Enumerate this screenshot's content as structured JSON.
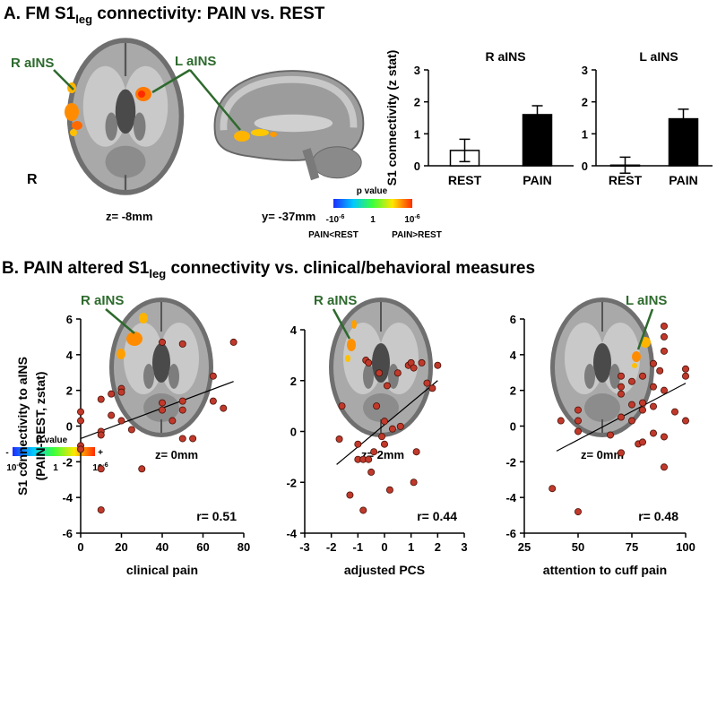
{
  "panel_a": {
    "title": [
      "A. FM S1",
      "leg",
      " connectivity: PAIN vs. REST"
    ],
    "labels": [
      "R aINS",
      "L aINS"
    ],
    "orientation": "R",
    "slices": [
      "z= -8mm",
      "y= -37mm"
    ],
    "colorbar": {
      "title": "p value",
      "low": "-10",
      "low_exp": "-6",
      "mid": "1",
      "high": "10",
      "high_exp": "-6",
      "left": "PAIN<REST",
      "right": "PAIN>REST"
    }
  },
  "panel_b": {
    "title": [
      "B. PAIN altered S1",
      "leg",
      " connectivity vs. clinical/behavioral measures"
    ],
    "labels": [
      "R aINS",
      "R aINS",
      "L aINS"
    ],
    "slices": [
      "z= 0mm",
      "z= 2mm",
      "z= 0mm"
    ],
    "colorbar": {
      "title": "p value",
      "minus": "-",
      "plus": "+",
      "low": "10",
      "low_exp": "-6",
      "mid": "1",
      "high": "10",
      "high_exp": "-6"
    }
  },
  "chart_data": [
    {
      "type": "bar",
      "title": "R aINS",
      "ylabel": "S1 connectivity (z stat)",
      "categories": [
        "REST",
        "PAIN"
      ],
      "values": [
        0.48,
        1.6
      ],
      "errors": [
        0.35,
        0.28
      ],
      "colors": [
        "#ffffff",
        "#000000"
      ],
      "ylim": [
        0,
        3
      ],
      "yticks": [
        0,
        1,
        2,
        3
      ]
    },
    {
      "type": "bar",
      "title": "L aINS",
      "categories": [
        "REST",
        "PAIN"
      ],
      "values": [
        0.02,
        1.47
      ],
      "errors": [
        0.25,
        0.3
      ],
      "colors": [
        "#ffffff",
        "#000000"
      ],
      "ylim": [
        0,
        3
      ],
      "yticks": [
        0,
        1,
        2,
        3
      ]
    },
    {
      "type": "scatter",
      "xlabel": "clinical pain",
      "ylabel": [
        "S1 connectivity to aINS",
        "(PAIN-REST, zstat)"
      ],
      "color": "#c0392b",
      "x": [
        0,
        0,
        0,
        0,
        10,
        10,
        10,
        10,
        10,
        15,
        15,
        20,
        20,
        20,
        25,
        30,
        40,
        40,
        40,
        45,
        50,
        50,
        50,
        50,
        55,
        65,
        65,
        70,
        75
      ],
      "y": [
        0.8,
        0.3,
        -1.1,
        -1.3,
        1.5,
        -0.3,
        -0.5,
        -2.4,
        -4.7,
        1.8,
        0.6,
        2.1,
        1.9,
        0.3,
        -0.2,
        -2.4,
        4.7,
        1.3,
        0.9,
        0.3,
        4.6,
        1.4,
        0.9,
        -0.7,
        -0.7,
        2.8,
        1.4,
        1.0,
        4.7
      ],
      "xlim": [
        0,
        80
      ],
      "xticks": [
        0,
        20,
        40,
        60,
        80
      ],
      "ylim": [
        -6,
        6
      ],
      "yticks": [
        -6,
        -4,
        -2,
        0,
        2,
        4,
        6
      ],
      "trendline": {
        "x": [
          0,
          75
        ],
        "y": [
          -0.7,
          2.5
        ]
      },
      "annotation": "r= 0.51"
    },
    {
      "type": "scatter",
      "xlabel": "adjusted PCS",
      "color": "#c0392b",
      "x": [
        -1.6,
        -1.7,
        -1.3,
        -1.0,
        -1.0,
        -0.8,
        -0.8,
        -0.7,
        -0.6,
        -0.6,
        -0.5,
        -0.4,
        -0.3,
        -0.2,
        -0.1,
        0,
        0,
        0.1,
        0.2,
        0.3,
        0.5,
        0.6,
        0.9,
        1.0,
        1.1,
        1.2,
        1.1,
        1.4,
        1.6,
        1.8,
        2.0
      ],
      "y": [
        1.0,
        -0.3,
        -2.5,
        -0.5,
        -1.1,
        -1.1,
        -3.1,
        2.8,
        2.7,
        -1.1,
        -1.6,
        -0.8,
        1.0,
        2.3,
        -0.2,
        0.4,
        -0.5,
        1.8,
        -2.3,
        0.1,
        2.3,
        0.2,
        2.6,
        2.7,
        2.5,
        -0.8,
        -2.0,
        2.7,
        1.9,
        1.7,
        2.6
      ],
      "xlim": [
        -3,
        3
      ],
      "xticks": [
        -3,
        -2,
        -1,
        0,
        1,
        2,
        3
      ],
      "ylim": [
        -4,
        4
      ],
      "yticks": [
        -4,
        -2,
        0,
        2,
        4
      ],
      "trendline": {
        "x": [
          -1.8,
          2
        ],
        "y": [
          -1.3,
          2.0
        ]
      },
      "annotation": "r= 0.44"
    },
    {
      "type": "scatter",
      "xlabel": "attention to cuff pain",
      "color": "#c0392b",
      "x": [
        38,
        42,
        50,
        50,
        50,
        50,
        65,
        70,
        70,
        70,
        70,
        70,
        75,
        75,
        75,
        78,
        80,
        80,
        80,
        80,
        85,
        85,
        85,
        85,
        88,
        90,
        90,
        90,
        90,
        90,
        90,
        95,
        100,
        100,
        100
      ],
      "y": [
        -3.5,
        0.3,
        0.9,
        0.3,
        -0.3,
        -4.8,
        -0.5,
        2.8,
        2.2,
        1.8,
        0.5,
        -1.5,
        2.5,
        1.2,
        0.3,
        -1.0,
        2.8,
        1.3,
        0.9,
        -0.9,
        3.5,
        2.2,
        1.1,
        -0.4,
        3.1,
        5.6,
        5.0,
        4.2,
        2.0,
        -0.6,
        -2.3,
        0.8,
        3.2,
        2.8,
        0.3
      ],
      "xlim": [
        25,
        100
      ],
      "xticks": [
        25,
        50,
        75,
        100
      ],
      "ylim": [
        -6,
        6
      ],
      "yticks": [
        -6,
        -4,
        -2,
        0,
        2,
        4,
        6
      ],
      "trendline": {
        "x": [
          40,
          100
        ],
        "y": [
          -1.4,
          2.4
        ]
      },
      "annotation": "r= 0.48"
    }
  ]
}
